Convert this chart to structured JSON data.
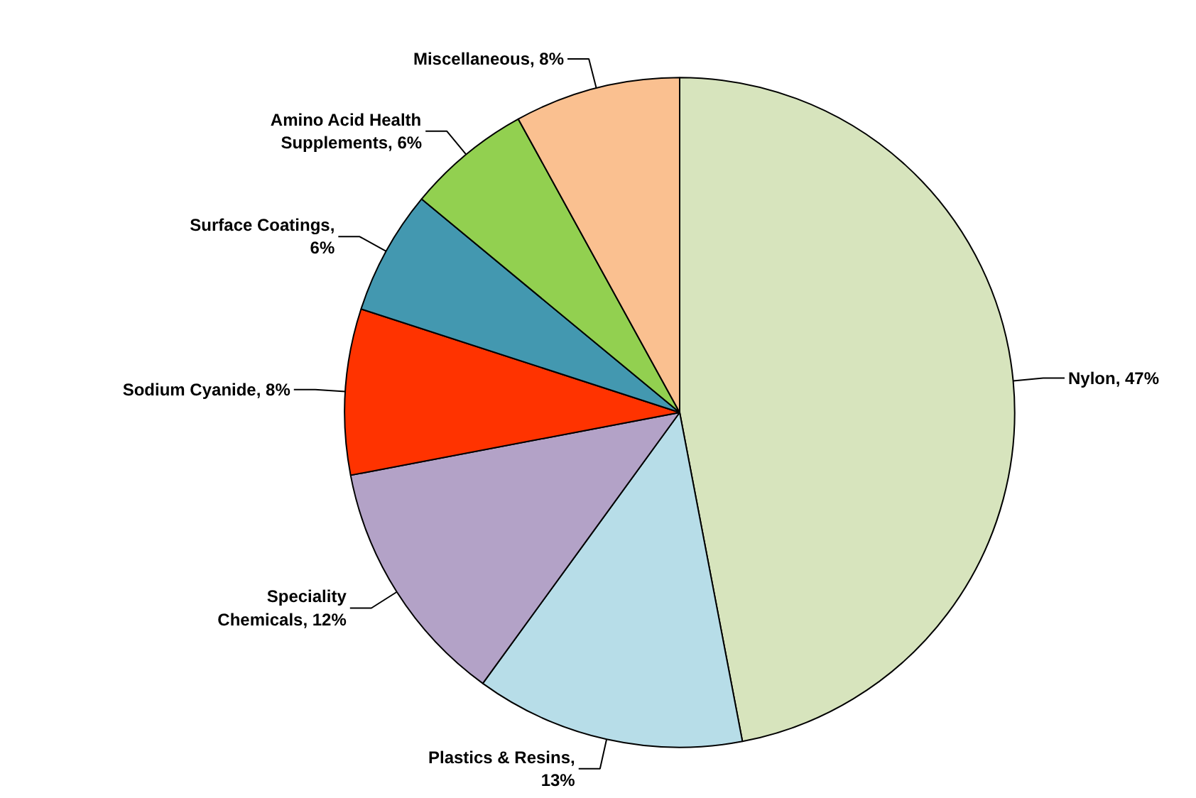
{
  "chart_data": {
    "type": "pie",
    "categories": [
      "Nylon, 47%",
      "Plastics & Resins, 13%",
      "Speciality Chemicals, 12%",
      "Sodium Cyanide, 8%",
      "Surface Coatings, 6%",
      "Amino Acid Health Supplements, 6%",
      "Miscellaneous, 8%"
    ],
    "values": [
      47,
      13,
      12,
      8,
      6,
      6,
      8
    ],
    "colors": [
      "#d7e4bd",
      "#b7dde8",
      "#b3a2c7",
      "#ff3300",
      "#4398b0",
      "#92d050",
      "#fac090"
    ]
  }
}
